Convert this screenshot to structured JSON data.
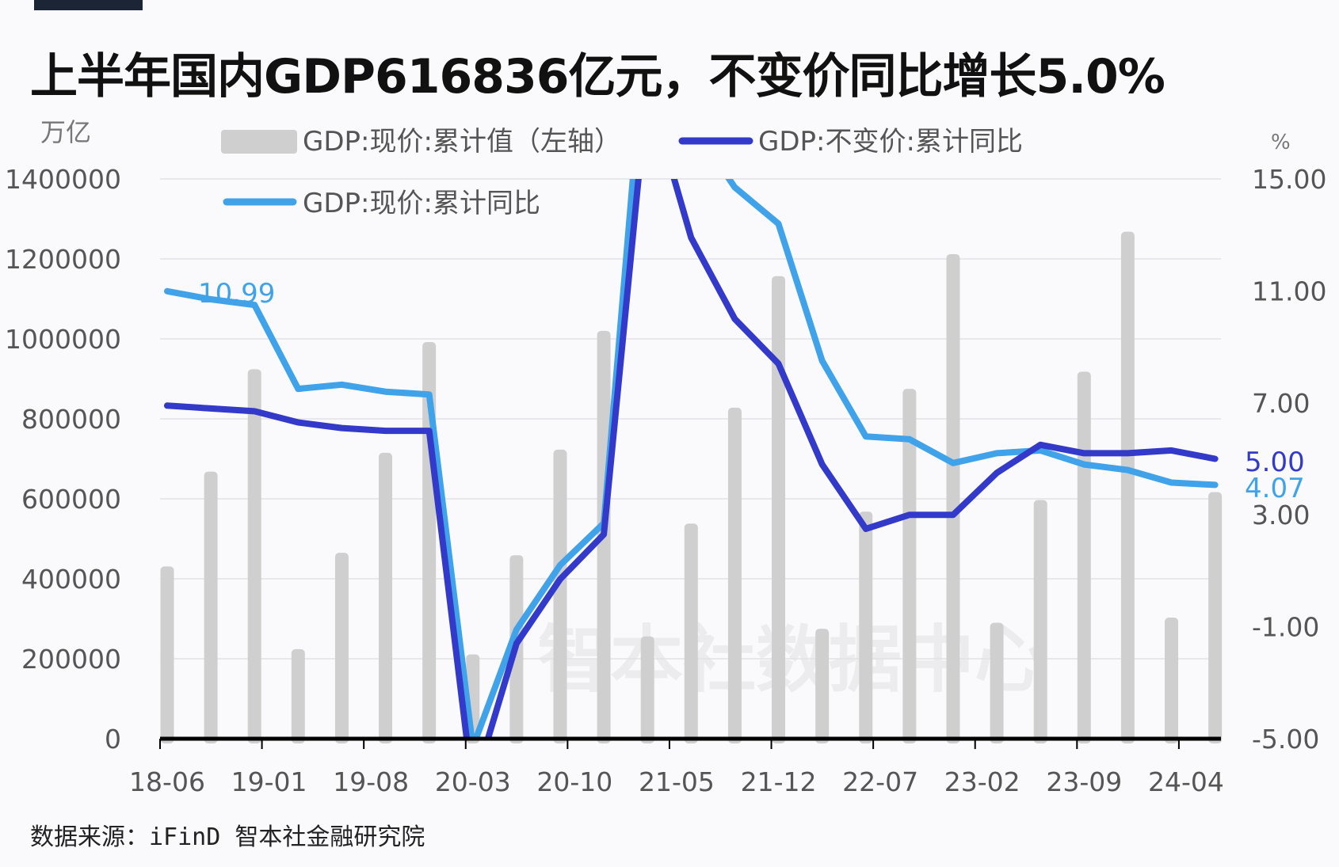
{
  "title": "上半年国内GDP616836亿元，不变价同比增长5.0%",
  "footer": "数据来源：iFinD 智本社金融研究院",
  "watermark": "智本社数据中心",
  "chart_data": {
    "type": "bar+line",
    "title": "上半年国内GDP616836亿元，不变价同比增长5.0%",
    "left_axis": {
      "unit": "万亿",
      "range": [
        0,
        1400000
      ],
      "ticks": [
        "0",
        "200000",
        "400000",
        "600000",
        "800000",
        "1000000",
        "1200000",
        "1400000"
      ]
    },
    "right_axis": {
      "unit": "%",
      "range": [
        -5,
        15
      ],
      "ticks": [
        "-5.00",
        "-1.00",
        "3.00",
        "7.00",
        "11.00",
        "15.00"
      ]
    },
    "x_tick_labels": [
      "18-06",
      "19-01",
      "19-08",
      "20-03",
      "20-10",
      "21-05",
      "21-12",
      "22-07",
      "23-02",
      "23-09",
      "24-04"
    ],
    "categories": [
      "2018-06",
      "2018-09",
      "2018-12",
      "2019-03",
      "2019-06",
      "2019-09",
      "2019-12",
      "2020-03",
      "2020-06",
      "2020-09",
      "2020-12",
      "2021-03",
      "2021-06",
      "2021-09",
      "2021-12",
      "2022-03",
      "2022-06",
      "2022-09",
      "2022-12",
      "2023-03",
      "2023-06",
      "2023-09",
      "2023-12",
      "2024-03",
      "2024-06"
    ],
    "grid": true,
    "legend_position": "top",
    "series": [
      {
        "name": "GDP:现价:累计值（左轴）",
        "type": "bar",
        "axis": "left",
        "color": "#d0cfd0",
        "values": [
          431000,
          668000,
          924000,
          224000,
          465000,
          715000,
          992000,
          211000,
          459000,
          723000,
          1020000,
          256000,
          538000,
          828000,
          1157000,
          275000,
          568000,
          875000,
          1212000,
          290000,
          597000,
          918000,
          1268000,
          303000,
          616836
        ]
      },
      {
        "name": "GDP:不变价:累计同比",
        "type": "line",
        "axis": "right",
        "color": "#3339c8",
        "values": [
          6.9,
          6.8,
          6.7,
          6.3,
          6.1,
          6.0,
          6.0,
          -6.8,
          -1.6,
          0.7,
          2.3,
          18.3,
          12.9,
          10.0,
          8.4,
          4.8,
          2.5,
          3.0,
          3.0,
          4.5,
          5.5,
          5.2,
          5.2,
          5.3,
          5.0
        ],
        "end_label": "5.00"
      },
      {
        "name": "GDP:现价:累计同比",
        "type": "line",
        "axis": "right",
        "color": "#40a3ea",
        "values": [
          10.99,
          10.7,
          10.5,
          7.5,
          7.65,
          7.4,
          7.3,
          -5.3,
          -1.1,
          1.2,
          2.7,
          21.2,
          17.0,
          14.7,
          13.4,
          8.5,
          5.8,
          5.7,
          4.85,
          5.2,
          5.3,
          4.8,
          4.6,
          4.15,
          4.07
        ],
        "start_label": "10.99",
        "end_label": "4.07"
      }
    ]
  }
}
